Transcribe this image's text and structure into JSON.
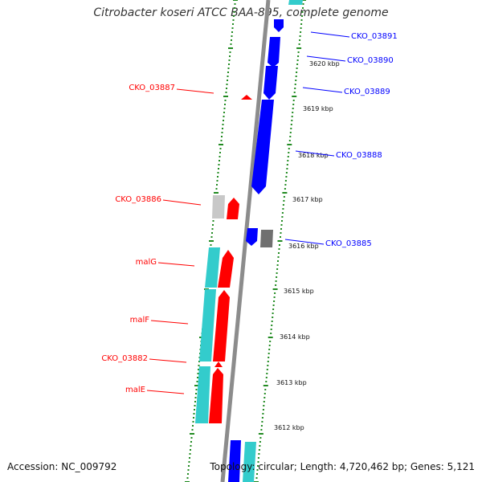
{
  "title": "Citrobacter koseri ATCC BAA-895, complete genome",
  "accession": "Accession: NC_009792",
  "topology": "Topology: circular; Length: 4,720,462 bp; Genes: 5,121",
  "colors": {
    "forward_cds": "#ff0000",
    "reverse_cds": "#0000ff",
    "forward_rna": "#33cccc",
    "other_gray": "#707070",
    "light_gray": "#c8c8c8",
    "backbone": "#8c8c8c",
    "guide": "#228b22"
  },
  "ticks": [
    "3620 kbp",
    "3619 kbp",
    "3618 kbp",
    "3617 kbp",
    "3616 kbp",
    "3615 kbp",
    "3614 kbp",
    "3613 kbp",
    "3612 kbp"
  ],
  "labels_left": [
    "CKO_03887",
    "CKO_03886",
    "malG",
    "malF",
    "CKO_03882",
    "malE"
  ],
  "labels_right": [
    "CKO_03891",
    "CKO_03890",
    "CKO_03889",
    "CKO_03888",
    "CKO_03885"
  ]
}
